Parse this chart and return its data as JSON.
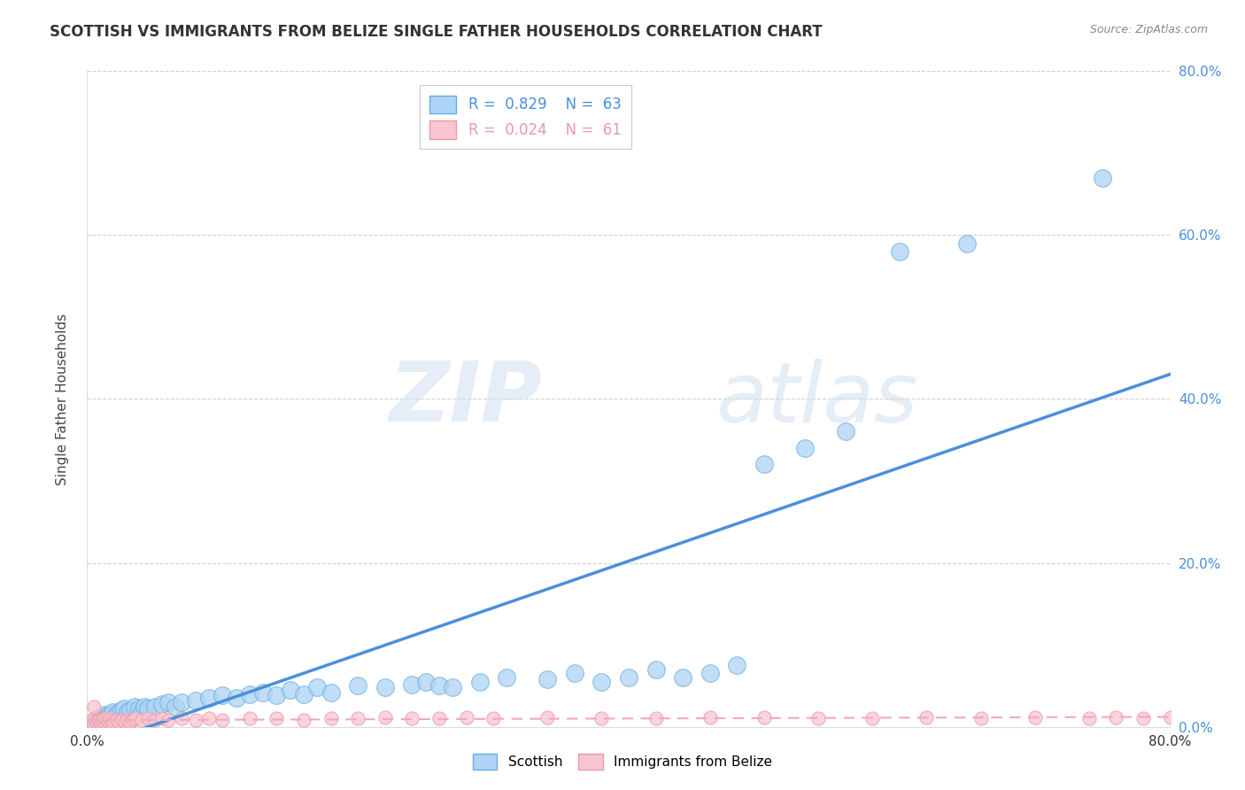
{
  "title": "SCOTTISH VS IMMIGRANTS FROM BELIZE SINGLE FATHER HOUSEHOLDS CORRELATION CHART",
  "source": "Source: ZipAtlas.com",
  "ylabel": "Single Father Households",
  "xlim": [
    0.0,
    0.8
  ],
  "ylim": [
    0.0,
    0.8
  ],
  "legend_r1": "R = 0.829",
  "legend_n1": "N = 63",
  "legend_r2": "R = 0.024",
  "legend_n2": "N = 61",
  "legend_label1": "Scottish",
  "legend_label2": "Immigrants from Belize",
  "watermark_zip": "ZIP",
  "watermark_atlas": "atlas",
  "blue_scatter_color": "#AED4F5",
  "blue_edge_color": "#6AAEE0",
  "blue_line_color": "#4A90D9",
  "pink_scatter_color": "#F9C5D0",
  "pink_edge_color": "#E89AAA",
  "pink_line_color": "#F0A8BB",
  "title_color": "#333333",
  "grid_color": "#CCCCCC",
  "right_tick_color": "#4A90D9",
  "scottish_x": [
    0.005,
    0.007,
    0.008,
    0.01,
    0.011,
    0.012,
    0.013,
    0.014,
    0.015,
    0.016,
    0.017,
    0.018,
    0.019,
    0.02,
    0.022,
    0.023,
    0.025,
    0.027,
    0.03,
    0.032,
    0.035,
    0.038,
    0.04,
    0.042,
    0.045,
    0.05,
    0.055,
    0.06,
    0.065,
    0.07,
    0.08,
    0.09,
    0.1,
    0.11,
    0.12,
    0.13,
    0.14,
    0.15,
    0.16,
    0.17,
    0.18,
    0.2,
    0.22,
    0.24,
    0.25,
    0.26,
    0.27,
    0.29,
    0.31,
    0.34,
    0.36,
    0.38,
    0.4,
    0.42,
    0.44,
    0.46,
    0.48,
    0.5,
    0.53,
    0.56,
    0.6,
    0.65,
    0.75
  ],
  "scottish_y": [
    0.005,
    0.008,
    0.01,
    0.012,
    0.01,
    0.012,
    0.015,
    0.01,
    0.012,
    0.015,
    0.012,
    0.015,
    0.018,
    0.012,
    0.015,
    0.018,
    0.02,
    0.022,
    0.018,
    0.02,
    0.025,
    0.022,
    0.018,
    0.025,
    0.022,
    0.025,
    0.028,
    0.03,
    0.025,
    0.03,
    0.032,
    0.035,
    0.038,
    0.035,
    0.04,
    0.042,
    0.038,
    0.045,
    0.04,
    0.048,
    0.042,
    0.05,
    0.048,
    0.052,
    0.055,
    0.05,
    0.048,
    0.055,
    0.06,
    0.058,
    0.065,
    0.055,
    0.06,
    0.07,
    0.06,
    0.065,
    0.075,
    0.32,
    0.34,
    0.36,
    0.58,
    0.59,
    0.67
  ],
  "belize_x": [
    0.002,
    0.003,
    0.004,
    0.005,
    0.006,
    0.007,
    0.008,
    0.009,
    0.01,
    0.011,
    0.012,
    0.013,
    0.014,
    0.015,
    0.016,
    0.017,
    0.018,
    0.019,
    0.02,
    0.022,
    0.024,
    0.026,
    0.028,
    0.03,
    0.032,
    0.034,
    0.036,
    0.04,
    0.045,
    0.05,
    0.055,
    0.06,
    0.07,
    0.08,
    0.09,
    0.1,
    0.12,
    0.14,
    0.16,
    0.18,
    0.2,
    0.22,
    0.24,
    0.26,
    0.28,
    0.3,
    0.34,
    0.38,
    0.42,
    0.46,
    0.5,
    0.54,
    0.58,
    0.62,
    0.66,
    0.7,
    0.74,
    0.76,
    0.78,
    0.8,
    0.005
  ],
  "belize_y": [
    0.005,
    0.008,
    0.005,
    0.01,
    0.007,
    0.005,
    0.008,
    0.006,
    0.005,
    0.008,
    0.006,
    0.01,
    0.005,
    0.008,
    0.006,
    0.01,
    0.005,
    0.008,
    0.006,
    0.008,
    0.006,
    0.008,
    0.006,
    0.008,
    0.006,
    0.008,
    0.01,
    0.008,
    0.01,
    0.008,
    0.01,
    0.008,
    0.01,
    0.008,
    0.01,
    0.008,
    0.01,
    0.01,
    0.008,
    0.01,
    0.01,
    0.012,
    0.01,
    0.01,
    0.012,
    0.01,
    0.012,
    0.01,
    0.01,
    0.012,
    0.012,
    0.01,
    0.01,
    0.012,
    0.01,
    0.012,
    0.01,
    0.012,
    0.01,
    0.012,
    0.025
  ]
}
